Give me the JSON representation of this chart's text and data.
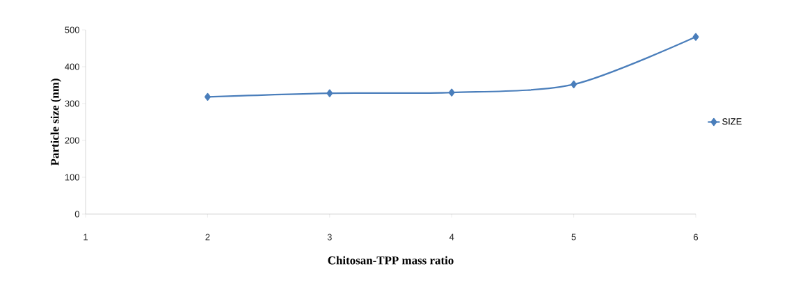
{
  "chart_data": {
    "type": "line",
    "xlabel": "Chitosan-TPP mass ratio",
    "ylabel": "Particle size (nm)",
    "x": [
      2,
      3,
      4,
      5,
      6
    ],
    "series": [
      {
        "name": "SIZE",
        "color": "#4a7ebb",
        "values": [
          318,
          328,
          330,
          352,
          481
        ]
      }
    ],
    "xlim": [
      1,
      6
    ],
    "xticks": [
      1,
      2,
      3,
      4,
      5,
      6
    ],
    "ylim": [
      0,
      500
    ],
    "yticks": [
      0,
      100,
      200,
      300,
      400,
      500
    ],
    "marker": "diamond",
    "line_style": "solid",
    "legend": "right",
    "grid": false
  }
}
